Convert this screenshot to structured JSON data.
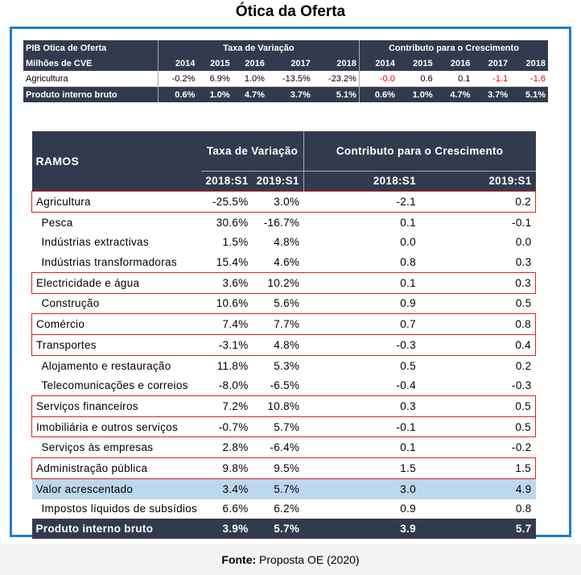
{
  "title": "Ótica da Oferta",
  "top_table": {
    "title": "PIB Otica de Oferta",
    "unit": "Milhões de CVE",
    "group1": "Taxa de Variação",
    "group2": "Contributo para o Crescimento",
    "years": [
      "2014",
      "2015",
      "2016",
      "2017",
      "2018"
    ],
    "rows": [
      {
        "label": "Agricultura",
        "taxa": [
          "-0.2%",
          "6.9%",
          "1.0%",
          "-13.5%",
          "-23.2%"
        ],
        "contrib": [
          "-0.0",
          "0.6",
          "0.1",
          "-1.1",
          "-1.6"
        ]
      },
      {
        "label": "Produto interno bruto",
        "taxa": [
          "0.6%",
          "1.0%",
          "4.7%",
          "3.7%",
          "5.1%"
        ],
        "contrib": [
          "0.6%",
          "1.0%",
          "4.7%",
          "3.7%",
          "5.1%"
        ]
      }
    ]
  },
  "main_table": {
    "header": "RAMOS",
    "group1": "Taxa de Variação",
    "group2": "Contributo para o Crescimento",
    "periods": [
      "2018:S1",
      "2019:S1",
      "2018:S1",
      "2019:S1"
    ],
    "rows": [
      {
        "label": "Agricultura",
        "v": [
          "-25.5%",
          "3.0%",
          "-2.1",
          "0.2"
        ]
      },
      {
        "label": "Pesca",
        "v": [
          "30.6%",
          "-16.7%",
          "0.1",
          "-0.1"
        ]
      },
      {
        "label": "Indústrias extractivas",
        "v": [
          "1.5%",
          "4.8%",
          "0.0",
          "0.0"
        ]
      },
      {
        "label": "Indústrias transformadoras",
        "v": [
          "15.4%",
          "4.6%",
          "0.8",
          "0.3"
        ]
      },
      {
        "label": "Electricidade e água",
        "v": [
          "3.6%",
          "10.2%",
          "0.1",
          "0.3"
        ]
      },
      {
        "label": "Construção",
        "v": [
          "10.6%",
          "5.6%",
          "0.9",
          "0.5"
        ]
      },
      {
        "label": "Comércio",
        "v": [
          "7.4%",
          "7.7%",
          "0.7",
          "0.8"
        ]
      },
      {
        "label": "Transportes",
        "v": [
          "-3.1%",
          "4.8%",
          "-0.3",
          "0.4"
        ]
      },
      {
        "label": "Alojamento e restauração",
        "v": [
          "11.8%",
          "5.3%",
          "0.5",
          "0.2"
        ]
      },
      {
        "label": "Telecomunicações e correios",
        "v": [
          "-8.0%",
          "-6.5%",
          "-0.4",
          "-0.3"
        ]
      },
      {
        "label": "Serviços financeiros",
        "v": [
          "7.2%",
          "10.8%",
          "0.3",
          "0.5"
        ]
      },
      {
        "label": "Imobiliária e outros serviços",
        "v": [
          "-0.7%",
          "5.7%",
          "-0.1",
          "0.5"
        ]
      },
      {
        "label": "Serviços às empresas",
        "v": [
          "2.8%",
          "-6.4%",
          "0.1",
          "-0.2"
        ]
      },
      {
        "label": "Administração pública",
        "v": [
          "9.8%",
          "9.5%",
          "1.5",
          "1.5"
        ]
      },
      {
        "label": "Valor acrescentado",
        "v": [
          "3.4%",
          "5.7%",
          "3.0",
          "4.9"
        ]
      },
      {
        "label": "Impostos líquidos de subsídios",
        "v": [
          "6.6%",
          "6.2%",
          "0.9",
          "0.8"
        ]
      },
      {
        "label": "Produto interno bruto",
        "v": [
          "3.9%",
          "5.7%",
          "3.9",
          "5.7"
        ]
      }
    ]
  },
  "highlighted_rows": [
    0,
    4,
    6,
    7,
    10,
    11,
    13
  ],
  "footer": {
    "label": "Fonte:",
    "text": " Proposta OE (2020)"
  },
  "colors": {
    "header": "#323b4e",
    "frame": "#1f7fc7",
    "highlight": "#d22222",
    "value_added": "#bdd7ee"
  }
}
